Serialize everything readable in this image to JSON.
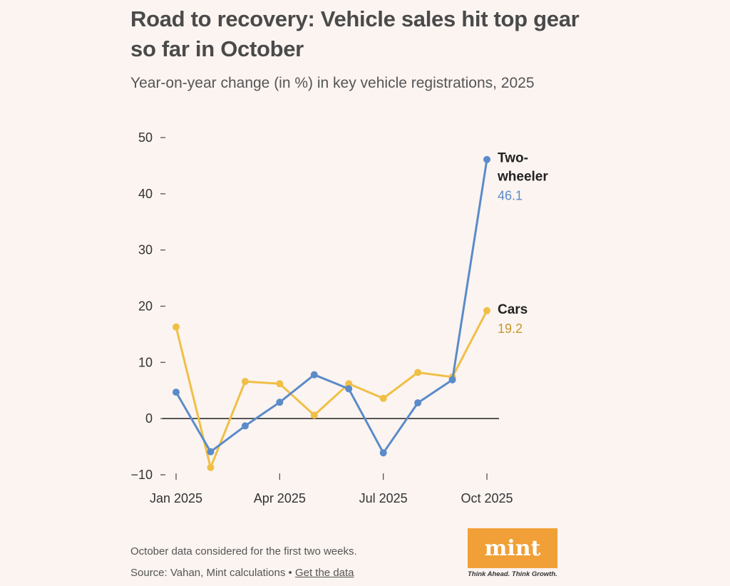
{
  "header": {
    "title": "Road to recovery: Vehicle sales hit top gear so far in October",
    "subtitle": "Year-on-year change (in %) in key vehicle registrations, 2025"
  },
  "footer": {
    "note": "October data considered for the first two weeks.",
    "source": "Source: Vahan, Mint calculations",
    "separator": "•",
    "link": "Get the data"
  },
  "brand": {
    "logo_text": "mint",
    "tagline": "Think Ahead. Think Growth.",
    "color": "#f0a037"
  },
  "chart_data": {
    "type": "line",
    "title": "Road to recovery: Vehicle sales hit top gear so far in October",
    "subtitle": "Year-on-year change (in %) in key vehicle registrations, 2025",
    "x": [
      "Jan 2025",
      "Feb 2025",
      "Mar 2025",
      "Apr 2025",
      "May 2025",
      "Jun 2025",
      "Jul 2025",
      "Aug 2025",
      "Sep 2025",
      "Oct 2025"
    ],
    "x_tick_labels": [
      "Jan 2025",
      "Apr 2025",
      "Jul 2025",
      "Oct 2025"
    ],
    "ylim": [
      -10,
      50
    ],
    "y_ticks": [
      -10,
      0,
      10,
      20,
      30,
      40,
      50
    ],
    "series": [
      {
        "name": "Two-wheeler",
        "label_lines": [
          "Two-",
          "wheeler"
        ],
        "end_label": "46.1",
        "color": "#5b8bc9",
        "values": [
          4.7,
          -5.9,
          -1.3,
          2.9,
          7.8,
          5.3,
          -6.1,
          2.8,
          6.9,
          46.1
        ]
      },
      {
        "name": "Cars",
        "label_lines": [
          "Cars"
        ],
        "end_label": "19.2",
        "color": "#f0bf45",
        "value_color": "#c9962a",
        "values": [
          16.3,
          -8.7,
          6.6,
          6.2,
          0.6,
          6.2,
          3.6,
          8.2,
          7.4,
          19.2
        ]
      }
    ],
    "grid": false,
    "legend": "direct labels at line ends"
  }
}
